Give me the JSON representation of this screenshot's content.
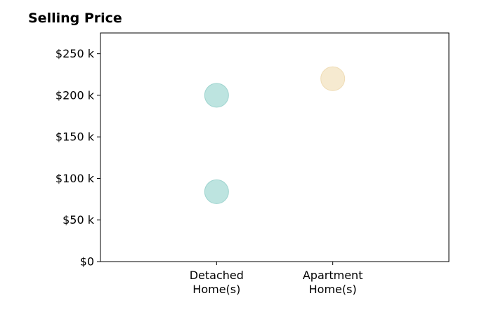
{
  "chart_data": {
    "type": "scatter",
    "title": "Selling Price",
    "xlabel": "",
    "ylabel": "",
    "categories": [
      [
        "Detached",
        "Home(s)"
      ],
      [
        "Apartment",
        "Home(s)"
      ]
    ],
    "xlim": [
      -1,
      2
    ],
    "ylim": [
      0,
      275000
    ],
    "yticks": [
      0,
      50000,
      100000,
      150000,
      200000,
      250000
    ],
    "ytick_labels": [
      "$0",
      "$50 k",
      "$100 k",
      "$150 k",
      "$200 k",
      "$250 k"
    ],
    "grid": false,
    "points": [
      {
        "category": "Detached Home(s)",
        "x": 0,
        "y": 200000,
        "color": "#b2dfdb"
      },
      {
        "category": "Detached Home(s)",
        "x": 0,
        "y": 84000,
        "color": "#b2dfdb"
      },
      {
        "category": "Apartment Home(s)",
        "x": 1,
        "y": 220000,
        "color": "#f5e6c8"
      }
    ],
    "colors": {
      "detached": "#b2dfdb",
      "apartment": "#f5e6c8",
      "detached_edge": "#9fd4cf",
      "apartment_edge": "#efdcb5"
    }
  }
}
